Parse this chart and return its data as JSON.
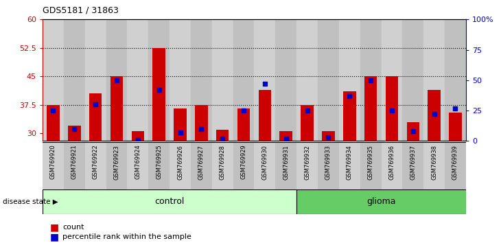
{
  "title": "GDS5181 / 31863",
  "samples": [
    "GSM769920",
    "GSM769921",
    "GSM769922",
    "GSM769923",
    "GSM769924",
    "GSM769925",
    "GSM769926",
    "GSM769927",
    "GSM769928",
    "GSM769929",
    "GSM769930",
    "GSM769931",
    "GSM769932",
    "GSM769933",
    "GSM769934",
    "GSM769935",
    "GSM769936",
    "GSM769937",
    "GSM769938",
    "GSM769939"
  ],
  "red_values": [
    37.5,
    32.0,
    40.5,
    45.0,
    30.5,
    52.5,
    36.5,
    37.5,
    31.0,
    36.5,
    41.5,
    30.5,
    37.5,
    30.5,
    41.0,
    45.0,
    45.0,
    33.0,
    41.5,
    35.5
  ],
  "blue_values": [
    25,
    10,
    30,
    50,
    1,
    42,
    7,
    10,
    2,
    25,
    47,
    2,
    25,
    3,
    37,
    50,
    25,
    8,
    22,
    27
  ],
  "ylim_left": [
    28,
    60
  ],
  "ylim_right": [
    0,
    100
  ],
  "yticks_left": [
    30,
    37.5,
    45,
    52.5,
    60
  ],
  "ytick_labels_left": [
    "30",
    "37.5",
    "45",
    "52.5",
    "60"
  ],
  "yticks_right": [
    0,
    25,
    50,
    75,
    100
  ],
  "ytick_labels_right": [
    "0",
    "25",
    "50",
    "75",
    "100%"
  ],
  "hlines": [
    37.5,
    45.0,
    52.5
  ],
  "control_count": 12,
  "glioma_count": 8,
  "bar_bottom": 28,
  "red_color": "#cc0000",
  "blue_color": "#0000cc",
  "bar_width": 0.6,
  "legend_count": "count",
  "legend_pct": "percentile rank within the sample",
  "control_label": "control",
  "glioma_label": "glioma",
  "disease_state_label": "disease state",
  "control_color": "#ccffcc",
  "glioma_color": "#66cc66",
  "col_bg_even": "#d0d0d0",
  "col_bg_odd": "#c0c0c0",
  "plot_bg": "#c8c8c8"
}
